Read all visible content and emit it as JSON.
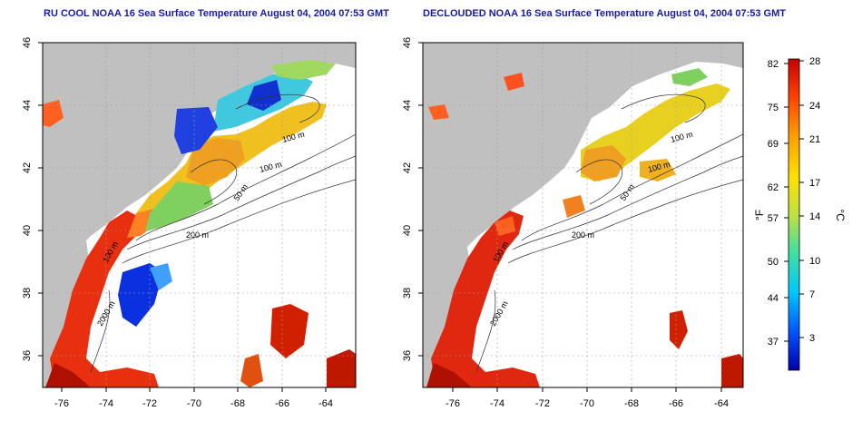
{
  "panels": [
    {
      "title": "RU COOL NOAA 16 Sea Surface Temperature August 04, 2004 07:53 GMT",
      "x_ticks": [
        "-76",
        "-74",
        "-72",
        "-70",
        "-68",
        "-66",
        "-64"
      ],
      "y_ticks": [
        "46",
        "44",
        "42",
        "40",
        "38",
        "36"
      ],
      "contour_labels": [
        "100 m",
        "100 m",
        "50 m",
        "200 m",
        "2000 m",
        "100 m"
      ]
    },
    {
      "title": "DECLOUDED NOAA 16 Sea Surface Temperature August 04, 2004 07:53 GMT",
      "x_ticks": [
        "-76",
        "-74",
        "-72",
        "-70",
        "-68",
        "-66",
        "-64"
      ],
      "y_ticks": [
        "46",
        "44",
        "42",
        "40",
        "38",
        "36"
      ],
      "contour_labels": [
        "100 m",
        "100 m",
        "50 m",
        "200 m",
        "2000 m",
        "100 m"
      ]
    }
  ],
  "colorbar": {
    "fahrenheit_ticks": [
      "82",
      "75",
      "69",
      "62",
      "57",
      "50",
      "44",
      "37"
    ],
    "celsius_ticks": [
      "28",
      "24",
      "21",
      "17",
      "14",
      "10",
      "7",
      "3"
    ],
    "left_unit": "°F",
    "right_unit": "°C",
    "colors": [
      "#0000aa",
      "#0050ff",
      "#00c8ff",
      "#40e0a0",
      "#c0e040",
      "#ffe000",
      "#ffa000",
      "#ff4000",
      "#c80000"
    ]
  }
}
